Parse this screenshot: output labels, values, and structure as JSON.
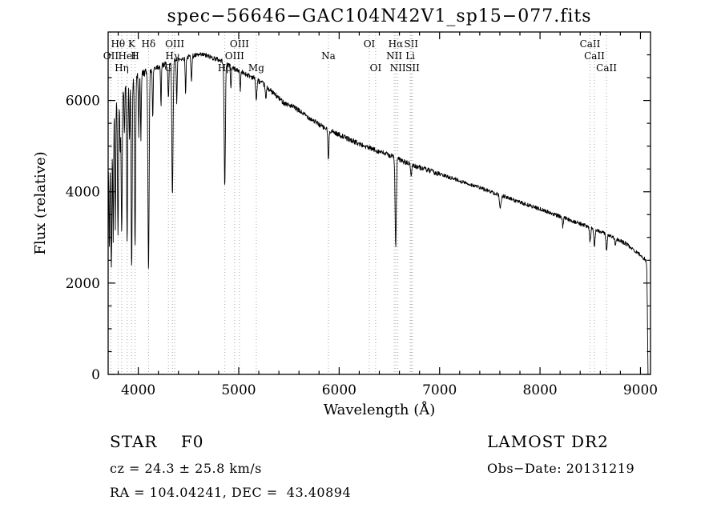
{
  "title": "spec−56646−GAC104N42V1_sp15−077.fits",
  "annotations": {
    "left": [
      {
        "text": "STAR    F0"
      },
      {
        "text": "cz = 24.3 ± 25.8 km/s"
      },
      {
        "text": "RA = 104.04241, DEC =  43.40894"
      }
    ],
    "right": [
      {
        "text": "LAMOST DR2"
      },
      {
        "text": "Obs−Date: 20131219"
      }
    ]
  },
  "chart_data": {
    "type": "line",
    "title": "spec−56646−GAC104N42V1_sp15−077.fits",
    "xlabel": "Wavelength (Å)",
    "ylabel": "Flux (relative)",
    "xlim": [
      3700,
      9100
    ],
    "ylim": [
      0,
      7500
    ],
    "xticks": [
      4000,
      5000,
      6000,
      7000,
      8000,
      9000
    ],
    "yticks": [
      0,
      2000,
      4000,
      6000
    ],
    "x_minor_step": 200,
    "y_minor_step": 500,
    "sample_step": 3,
    "x_start": 3702,
    "x_end": 9075,
    "seed": 42,
    "noise": {
      "base": 55,
      "blue_limit": 4500,
      "blue_extra": 55,
      "red_limit": 7000,
      "red": 42
    },
    "continuum": [
      [
        3702,
        4500
      ],
      [
        3720,
        5100
      ],
      [
        3745,
        5600
      ],
      [
        3775,
        5900
      ],
      [
        3805,
        6100
      ],
      [
        3850,
        6300
      ],
      [
        3900,
        6400
      ],
      [
        3950,
        6450
      ],
      [
        4000,
        6550
      ],
      [
        4100,
        6650
      ],
      [
        4200,
        6750
      ],
      [
        4300,
        6800
      ],
      [
        4400,
        6900
      ],
      [
        4550,
        6980
      ],
      [
        4650,
        7000
      ],
      [
        4750,
        6930
      ],
      [
        4850,
        6850
      ],
      [
        4950,
        6700
      ],
      [
        5050,
        6600
      ],
      [
        5150,
        6500
      ],
      [
        5250,
        6350
      ],
      [
        5350,
        6150
      ],
      [
        5450,
        5950
      ],
      [
        5550,
        5850
      ],
      [
        5650,
        5700
      ],
      [
        5750,
        5550
      ],
      [
        5850,
        5400
      ],
      [
        5950,
        5300
      ],
      [
        6050,
        5200
      ],
      [
        6150,
        5100
      ],
      [
        6250,
        5000
      ],
      [
        6350,
        4920
      ],
      [
        6450,
        4840
      ],
      [
        6550,
        4760
      ],
      [
        6650,
        4650
      ],
      [
        6750,
        4570
      ],
      [
        6850,
        4500
      ],
      [
        6950,
        4420
      ],
      [
        7050,
        4350
      ],
      [
        7150,
        4280
      ],
      [
        7250,
        4200
      ],
      [
        7350,
        4130
      ],
      [
        7450,
        4050
      ],
      [
        7550,
        3970
      ],
      [
        7650,
        3890
      ],
      [
        7750,
        3810
      ],
      [
        7850,
        3730
      ],
      [
        7950,
        3660
      ],
      [
        8050,
        3580
      ],
      [
        8150,
        3500
      ],
      [
        8250,
        3420
      ],
      [
        8350,
        3340
      ],
      [
        8450,
        3260
      ],
      [
        8550,
        3180
      ],
      [
        8650,
        3080
      ],
      [
        8750,
        2980
      ],
      [
        8850,
        2870
      ],
      [
        8950,
        2700
      ],
      [
        9020,
        2570
      ],
      [
        9055,
        2500
      ],
      [
        9062,
        2430
      ],
      [
        9068,
        1600
      ],
      [
        9072,
        600
      ],
      [
        9075,
        0
      ]
    ],
    "absorption_lines": [
      [
        3712,
        2100,
        4
      ],
      [
        3727,
        1600,
        4
      ],
      [
        3734,
        2500,
        4
      ],
      [
        3750,
        2800,
        4
      ],
      [
        3771,
        2600,
        4
      ],
      [
        3798,
        3000,
        5
      ],
      [
        3820,
        1300,
        4
      ],
      [
        3835,
        3200,
        5
      ],
      [
        3862,
        1100,
        4
      ],
      [
        3889,
        3500,
        5
      ],
      [
        3912,
        1300,
        4
      ],
      [
        3934,
        4200,
        5
      ],
      [
        3968,
        3800,
        5
      ],
      [
        4005,
        1300,
        4
      ],
      [
        4026,
        1400,
        4
      ],
      [
        4102,
        4350,
        6
      ],
      [
        4144,
        1100,
        4
      ],
      [
        4226,
        900,
        4
      ],
      [
        4300,
        800,
        5
      ],
      [
        4340,
        2950,
        6
      ],
      [
        4383,
        900,
        4
      ],
      [
        4471,
        800,
        4
      ],
      [
        4530,
        500,
        5
      ],
      [
        4861,
        2750,
        6
      ],
      [
        4922,
        500,
        4
      ],
      [
        5015,
        420,
        4
      ],
      [
        5175,
        450,
        6
      ],
      [
        5270,
        300,
        5
      ],
      [
        5893,
        680,
        5
      ],
      [
        6563,
        1950,
        6
      ],
      [
        6717,
        260,
        5
      ],
      [
        7605,
        260,
        8
      ],
      [
        8227,
        200,
        5
      ],
      [
        8498,
        320,
        6
      ],
      [
        8542,
        360,
        6
      ],
      [
        8662,
        360,
        6
      ],
      [
        8750,
        180,
        5
      ]
    ],
    "spectral_lines": [
      {
        "label": "Hθ",
        "wavelength": 3798,
        "row": 1
      },
      {
        "label": "K",
        "wavelength": 3934,
        "row": 1
      },
      {
        "label": "Hδ",
        "wavelength": 4102,
        "row": 1
      },
      {
        "label": "OIII",
        "wavelength": 4363,
        "row": 1
      },
      {
        "label": "OIII",
        "wavelength": 5007,
        "row": 1
      },
      {
        "label": "OI",
        "wavelength": 6300,
        "row": 1
      },
      {
        "label": "Hα",
        "wavelength": 6563,
        "row": 1
      },
      {
        "label": "SII",
        "wavelength": 6717,
        "row": 1
      },
      {
        "label": "CaII",
        "wavelength": 8498,
        "row": 1
      },
      {
        "label": "OII",
        "wavelength": 3727,
        "row": 2
      },
      {
        "label": "HeI",
        "wavelength": 3889,
        "row": 2
      },
      {
        "label": "H",
        "wavelength": 3968,
        "row": 2
      },
      {
        "label": "Hγ",
        "wavelength": 4340,
        "row": 2
      },
      {
        "label": "OIII",
        "wavelength": 4959,
        "row": 2
      },
      {
        "label": "Na",
        "wavelength": 5893,
        "row": 2
      },
      {
        "label": "NII",
        "wavelength": 6548,
        "row": 2
      },
      {
        "label": "Li",
        "wavelength": 6708,
        "row": 2
      },
      {
        "label": "CaII",
        "wavelength": 8542,
        "row": 2
      },
      {
        "label": "Hη",
        "wavelength": 3835,
        "row": 3
      },
      {
        "label": "G",
        "wavelength": 4300,
        "row": 3
      },
      {
        "label": "Hβ",
        "wavelength": 4861,
        "row": 3
      },
      {
        "label": "Mg",
        "wavelength": 5175,
        "row": 3
      },
      {
        "label": "OI",
        "wavelength": 6363,
        "row": 3
      },
      {
        "label": "NII",
        "wavelength": 6584,
        "row": 3
      },
      {
        "label": "SII",
        "wavelength": 6731,
        "row": 3
      },
      {
        "label": "CaII",
        "wavelength": 8662,
        "row": 3
      }
    ]
  }
}
